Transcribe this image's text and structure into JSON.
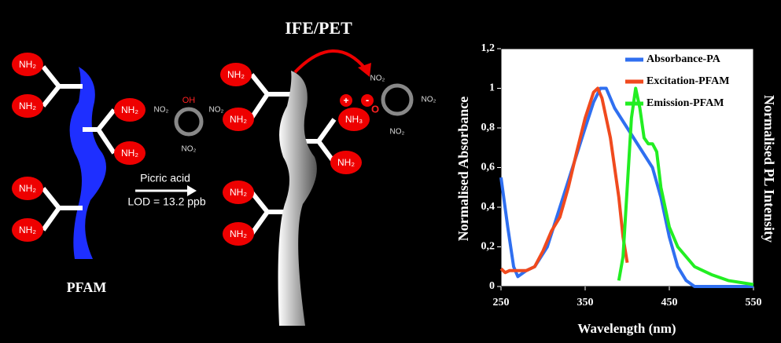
{
  "diagram": {
    "amine": "NH₂",
    "protonated_amine": "NH₃",
    "polymer_label": "PFAM",
    "reagent": "Picric acid",
    "lod": "LOD = 13.2 ppb",
    "mechanism": "IFE/PET",
    "hydroxyl": "OH",
    "nitro": "NO₂",
    "phenolate": "O",
    "plus": "+",
    "minus": "-"
  },
  "chart_data": {
    "type": "line",
    "xlabel": "Wavelength (nm)",
    "ylabel": "Normalised Absorbance",
    "y2label": "Normalised PL Intensity",
    "xlim": [
      250,
      560
    ],
    "xticks": [
      250,
      350,
      450,
      550
    ],
    "ylim": [
      0,
      1.2
    ],
    "yticks": [
      0,
      {
        "value": 0.2,
        "label": "0,2"
      },
      {
        "value": 0.4,
        "label": "0,4"
      },
      {
        "value": 0.6,
        "label": "0,6"
      },
      {
        "value": 0.8,
        "label": "0,8"
      },
      1,
      {
        "value": 1.2,
        "label": "1,2"
      }
    ],
    "series": [
      {
        "name": "Absorbance-PA",
        "color": "#2f6ff0",
        "x": [
          250,
          258,
          265,
          270,
          280,
          290,
          305,
          320,
          335,
          350,
          360,
          368,
          375,
          385,
          400,
          415,
          430,
          440,
          450,
          460,
          470,
          480,
          550
        ],
        "values": [
          0.55,
          0.3,
          0.1,
          0.05,
          0.08,
          0.1,
          0.2,
          0.4,
          0.6,
          0.8,
          0.93,
          1.0,
          1.0,
          0.9,
          0.8,
          0.7,
          0.6,
          0.45,
          0.25,
          0.1,
          0.03,
          0,
          0
        ]
      },
      {
        "name": "Excitation-PFAM",
        "color": "#f04a1e",
        "x": [
          250,
          255,
          260,
          280,
          290,
          300,
          310,
          320,
          330,
          340,
          350,
          360,
          365,
          370,
          380,
          390,
          395,
          400
        ],
        "values": [
          0.09,
          0.07,
          0.08,
          0.08,
          0.1,
          0.18,
          0.28,
          0.35,
          0.5,
          0.68,
          0.85,
          0.98,
          1.0,
          0.95,
          0.75,
          0.45,
          0.25,
          0.12
        ]
      },
      {
        "name": "Emission-PFAM",
        "color": "#22ee22",
        "x": [
          390,
          395,
          400,
          405,
          410,
          415,
          420,
          425,
          430,
          435,
          440,
          450,
          460,
          480,
          500,
          520,
          550
        ],
        "values": [
          0.03,
          0.15,
          0.5,
          0.85,
          1.0,
          0.9,
          0.75,
          0.72,
          0.72,
          0.68,
          0.5,
          0.3,
          0.2,
          0.1,
          0.06,
          0.03,
          0.01
        ]
      }
    ]
  }
}
